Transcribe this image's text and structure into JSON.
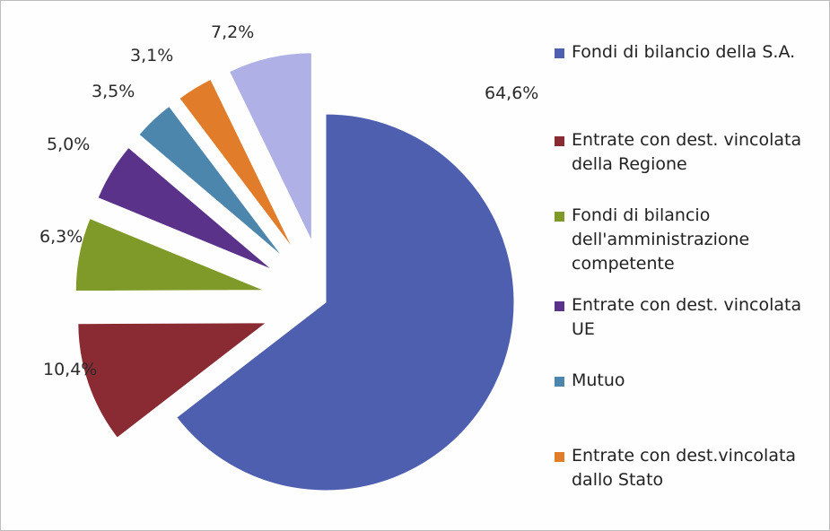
{
  "chart_data": {
    "type": "pie",
    "exploded": true,
    "slices": [
      {
        "label": "Fondi di bilancio della S.A.",
        "value": 64.6,
        "display": "64,6%",
        "color": "#4f5faf"
      },
      {
        "label": "Entrate con dest. vincolata della Regione",
        "value": 10.4,
        "display": "10,4%",
        "color": "#8a2a32"
      },
      {
        "label": "Fondi di bilancio dell'amministrazione competente",
        "value": 6.3,
        "display": "6,3%",
        "color": "#7f9a28"
      },
      {
        "label": "Entrate con dest. vincolata UE",
        "value": 5.0,
        "display": "5,0%",
        "color": "#5a3289"
      },
      {
        "label": "Mutuo",
        "value": 3.5,
        "display": "3,5%",
        "color": "#4d86ad"
      },
      {
        "label": "Entrate con dest.vincolata dallo Stato",
        "value": 3.1,
        "display": "3,1%",
        "color": "#e17d2a"
      },
      {
        "label": "",
        "value": 7.2,
        "display": "7,2%",
        "color": "#aeb0e6"
      }
    ],
    "legend": {
      "position": "right",
      "entries": [
        "Fondi di bilancio della S.A.",
        "Entrate con dest. vincolata della Regione",
        "Fondi di bilancio dell'amministrazione competente",
        "Entrate con dest. vincolata UE",
        "Mutuo",
        "Entrate con dest.vincolata dallo Stato"
      ]
    }
  }
}
